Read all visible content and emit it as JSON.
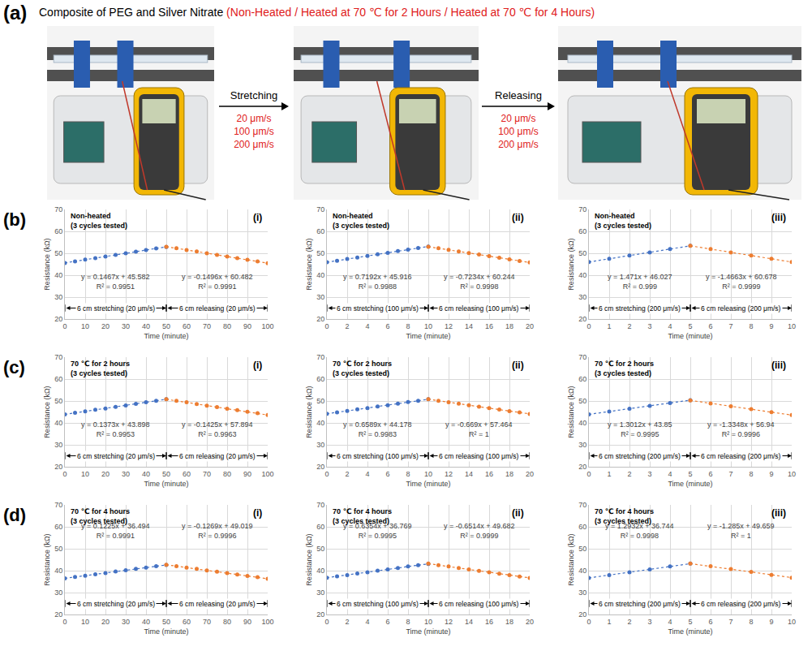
{
  "panel_a": {
    "label": "(a)",
    "title": "Composite of PEG and Silver Nitrate",
    "title_note": "(Non-Heated / Heated at 70 ℃ for 2 Hours / Heated at 70 ℃ for 4 Hours)",
    "steps": [
      {
        "text": "Stretching",
        "speeds": [
          "20 μm/s",
          "100 μm/s",
          "200 μm/s"
        ]
      },
      {
        "text": "Releasing",
        "speeds": [
          "20 μm/s",
          "100 μm/s",
          "200 μm/s"
        ]
      }
    ]
  },
  "chart_data": [
    {
      "type": "line",
      "row_label": "(b)",
      "title": "Non-heated",
      "subtitle": "(3 cycles tested)",
      "panel_label": "(i)",
      "x_label": "Time (minute)",
      "y_label": "Resistance (kΩ)",
      "xlim": [
        0,
        100
      ],
      "xticks": [
        0,
        10,
        20,
        30,
        40,
        50,
        60,
        70,
        80,
        90,
        100
      ],
      "ylim": [
        20,
        70
      ],
      "yticks": [
        20,
        30,
        40,
        50,
        60,
        70
      ],
      "grid": true,
      "series": [
        {
          "color": "#4472c4",
          "marker": "circle",
          "line_style": "dot",
          "x": [
            0,
            5,
            10,
            15,
            20,
            25,
            30,
            35,
            40,
            45,
            50
          ],
          "values": [
            45.6,
            46.3,
            47.1,
            47.8,
            48.5,
            49.3,
            50.0,
            50.7,
            51.5,
            52.2,
            52.9
          ],
          "fit": "y = 0.1467x + 45.582",
          "r2": "R² = 0.9951"
        },
        {
          "color": "#ed7d31",
          "marker": "circle",
          "line_style": "dot",
          "x": [
            50,
            55,
            60,
            65,
            70,
            75,
            80,
            85,
            90,
            95,
            100
          ],
          "values": [
            53.0,
            52.3,
            51.5,
            50.8,
            50.0,
            49.3,
            48.5,
            47.8,
            47.0,
            46.3,
            45.5
          ],
          "fit": "y = -0.1496x + 60.482",
          "r2": "R² = 0.9991"
        }
      ],
      "ranges": [
        {
          "text": "6 cm stretching (20 μm/s)",
          "from": 0,
          "to": 50,
          "y": 25
        },
        {
          "text": "6 cm releasing (20 μm/s)",
          "from": 50,
          "to": 100,
          "y": 25
        }
      ]
    },
    {
      "type": "line",
      "title": "Non-heated",
      "subtitle": "(3 cycles tested)",
      "panel_label": "(ii)",
      "x_label": "Time (minute)",
      "y_label": "Resistance (kΩ)",
      "xlim": [
        0,
        20
      ],
      "xticks": [
        0,
        2,
        4,
        6,
        8,
        10,
        12,
        14,
        16,
        18,
        20
      ],
      "ylim": [
        20,
        70
      ],
      "yticks": [
        20,
        30,
        40,
        50,
        60,
        70
      ],
      "grid": true,
      "series": [
        {
          "color": "#4472c4",
          "marker": "circle",
          "line_style": "dot",
          "x": [
            0,
            1,
            2,
            3,
            4,
            5,
            6,
            7,
            8,
            9,
            10
          ],
          "values": [
            45.9,
            46.6,
            47.4,
            48.1,
            48.8,
            49.5,
            50.2,
            51.0,
            51.7,
            52.4,
            53.1
          ],
          "fit": "y = 0.7192x + 45.916",
          "r2": "R² = 0.9988"
        },
        {
          "color": "#ed7d31",
          "marker": "circle",
          "line_style": "dot",
          "x": [
            10,
            11,
            12,
            13,
            14,
            15,
            16,
            17,
            18,
            19,
            20
          ],
          "values": [
            53.0,
            52.3,
            51.6,
            50.8,
            50.1,
            49.4,
            48.7,
            48.0,
            47.2,
            46.5,
            45.8
          ],
          "fit": "y = -0.7234x + 60.244",
          "r2": "R² = 0.9998"
        }
      ],
      "ranges": [
        {
          "text": "6 cm stretching (100 μm/s)",
          "from": 0,
          "to": 10,
          "y": 25
        },
        {
          "text": "6 cm releasing (100 μm/s)",
          "from": 10,
          "to": 20,
          "y": 25
        }
      ]
    },
    {
      "type": "line",
      "title": "Non-heated",
      "subtitle": "(3 cycles tested)",
      "panel_label": "(iii)",
      "x_label": "Time (minute)",
      "y_label": "Resistance (kΩ)",
      "xlim": [
        0,
        10
      ],
      "xticks": [
        0,
        1,
        2,
        3,
        4,
        5,
        6,
        7,
        8,
        9,
        10
      ],
      "ylim": [
        20,
        70
      ],
      "yticks": [
        20,
        30,
        40,
        50,
        60,
        70
      ],
      "grid": true,
      "series": [
        {
          "color": "#4472c4",
          "marker": "circle",
          "line_style": "dot",
          "x": [
            0,
            1,
            2,
            3,
            4,
            5
          ],
          "values": [
            46.0,
            47.5,
            49.0,
            50.4,
            51.9,
            53.4
          ],
          "fit": "y = 1.471x + 46.027",
          "r2": "R² = 0.999"
        },
        {
          "color": "#ed7d31",
          "marker": "circle",
          "line_style": "dot",
          "x": [
            5,
            6,
            7,
            8,
            9,
            10
          ],
          "values": [
            53.4,
            51.9,
            50.4,
            49.0,
            47.5,
            46.0
          ],
          "fit": "y = -1.4663x + 60.678",
          "r2": "R² = 0.9999"
        }
      ],
      "ranges": [
        {
          "text": "6 cm stretching (200 μm/s)",
          "from": 0,
          "to": 5,
          "y": 25
        },
        {
          "text": "6 cm releasing (200 μm/s)",
          "from": 5,
          "to": 10,
          "y": 25
        }
      ]
    },
    {
      "type": "line",
      "row_label": "(c)",
      "title": "70 ℃ for 2 hours",
      "subtitle": "(3 cycles tested)",
      "panel_label": "(i)",
      "x_label": "Time (minute)",
      "y_label": "Resistance (kΩ)",
      "xlim": [
        0,
        100
      ],
      "xticks": [
        0,
        10,
        20,
        30,
        40,
        50,
        60,
        70,
        80,
        90,
        100
      ],
      "ylim": [
        20,
        70
      ],
      "yticks": [
        20,
        30,
        40,
        50,
        60,
        70
      ],
      "grid": true,
      "series": [
        {
          "color": "#4472c4",
          "marker": "circle",
          "line_style": "dot",
          "x": [
            0,
            5,
            10,
            15,
            20,
            25,
            30,
            35,
            40,
            45,
            50
          ],
          "values": [
            43.9,
            44.6,
            45.3,
            46.0,
            46.6,
            47.3,
            48.0,
            48.7,
            49.4,
            50.1,
            50.8
          ],
          "fit": "y = 0.1373x + 43.898",
          "r2": "R² = 0.9953"
        },
        {
          "color": "#ed7d31",
          "marker": "circle",
          "line_style": "dot",
          "x": [
            50,
            55,
            60,
            65,
            70,
            75,
            80,
            85,
            90,
            95,
            100
          ],
          "values": [
            50.8,
            50.1,
            49.4,
            48.6,
            47.9,
            47.2,
            46.5,
            45.8,
            45.1,
            44.4,
            43.6
          ],
          "fit": "y = -0.1425x + 57.894",
          "r2": "R² = 0.9963"
        }
      ],
      "ranges": [
        {
          "text": "6 cm stretching (20 μm/s)",
          "from": 0,
          "to": 50,
          "y": 25
        },
        {
          "text": "6 cm releasing (20 μm/s)",
          "from": 50,
          "to": 100,
          "y": 25
        }
      ]
    },
    {
      "type": "line",
      "title": "70 ℃ for 2 hours",
      "subtitle": "(3 cycles tested)",
      "panel_label": "(ii)",
      "x_label": "Time (minute)",
      "y_label": "Resistance (kΩ)",
      "xlim": [
        0,
        20
      ],
      "xticks": [
        0,
        2,
        4,
        6,
        8,
        10,
        12,
        14,
        16,
        18,
        20
      ],
      "ylim": [
        20,
        70
      ],
      "yticks": [
        20,
        30,
        40,
        50,
        60,
        70
      ],
      "grid": true,
      "series": [
        {
          "color": "#4472c4",
          "marker": "circle",
          "line_style": "dot",
          "x": [
            0,
            1,
            2,
            3,
            4,
            5,
            6,
            7,
            8,
            9,
            10
          ],
          "values": [
            44.2,
            44.8,
            45.5,
            46.2,
            46.8,
            47.5,
            48.1,
            48.8,
            49.5,
            50.1,
            50.8
          ],
          "fit": "y = 0.6589x + 44.178",
          "r2": "R² = 0.9983"
        },
        {
          "color": "#ed7d31",
          "marker": "circle",
          "line_style": "dot",
          "x": [
            10,
            11,
            12,
            13,
            14,
            15,
            16,
            17,
            18,
            19,
            20
          ],
          "values": [
            50.8,
            50.1,
            49.4,
            48.8,
            48.1,
            47.4,
            46.8,
            46.1,
            45.4,
            44.8,
            44.1
          ],
          "fit": "y = -0.669x + 57.464",
          "r2": "R² = 1"
        }
      ],
      "ranges": [
        {
          "text": "6 cm stretching (100 μm/s)",
          "from": 0,
          "to": 10,
          "y": 25
        },
        {
          "text": "6 cm releasing (100 μm/s)",
          "from": 10,
          "to": 20,
          "y": 25
        }
      ]
    },
    {
      "type": "line",
      "title": "70 ℃ for 2 hours",
      "subtitle": "(3 cycles tested)",
      "panel_label": "(iii)",
      "x_label": "Time (minute)",
      "y_label": "Resistance (kΩ)",
      "xlim": [
        0,
        10
      ],
      "xticks": [
        0,
        1,
        2,
        3,
        4,
        5,
        6,
        7,
        8,
        9,
        10
      ],
      "ylim": [
        20,
        70
      ],
      "yticks": [
        20,
        30,
        40,
        50,
        60,
        70
      ],
      "grid": true,
      "series": [
        {
          "color": "#4472c4",
          "marker": "circle",
          "line_style": "dot",
          "x": [
            0,
            1,
            2,
            3,
            4,
            5
          ],
          "values": [
            43.9,
            45.2,
            46.5,
            47.8,
            49.1,
            50.4
          ],
          "fit": "y = 1.3012x + 43.85",
          "r2": "R² = 0.9995"
        },
        {
          "color": "#ed7d31",
          "marker": "circle",
          "line_style": "dot",
          "x": [
            5,
            6,
            7,
            8,
            9,
            10
          ],
          "values": [
            50.3,
            48.9,
            47.6,
            46.3,
            44.9,
            43.6
          ],
          "fit": "y = -1.3348x + 56.94",
          "r2": "R² = 0.9996"
        }
      ],
      "ranges": [
        {
          "text": "6 cm stretching (200 μm/s)",
          "from": 0,
          "to": 5,
          "y": 25
        },
        {
          "text": "6 cm releasing (200 μm/s)",
          "from": 5,
          "to": 10,
          "y": 25
        }
      ]
    },
    {
      "type": "line",
      "row_label": "(d)",
      "title": "70 ℃ for 4 hours",
      "subtitle": "(3 cycles tested)",
      "panel_label": "(i)",
      "x_label": "Time (minute)",
      "y_label": "Resistance (kΩ)",
      "xlim": [
        0,
        100
      ],
      "xticks": [
        0,
        10,
        20,
        30,
        40,
        50,
        60,
        70,
        80,
        90,
        100
      ],
      "ylim": [
        20,
        70
      ],
      "yticks": [
        20,
        30,
        40,
        50,
        60,
        70
      ],
      "grid": true,
      "series": [
        {
          "color": "#4472c4",
          "marker": "circle",
          "line_style": "dot",
          "x": [
            0,
            5,
            10,
            15,
            20,
            25,
            30,
            35,
            40,
            45,
            50
          ],
          "values": [
            36.5,
            37.1,
            37.7,
            38.3,
            38.9,
            39.6,
            40.2,
            40.8,
            41.4,
            42.0,
            42.6
          ],
          "fit": "y = 0.1225x + 36.494",
          "r2": "R² = 0.9991"
        },
        {
          "color": "#ed7d31",
          "marker": "circle",
          "line_style": "dot",
          "x": [
            50,
            55,
            60,
            65,
            70,
            75,
            80,
            85,
            90,
            95,
            100
          ],
          "values": [
            42.7,
            42.0,
            41.4,
            40.8,
            40.1,
            39.5,
            38.9,
            38.2,
            37.6,
            37.0,
            36.3
          ],
          "fit": "y = -0.1269x + 49.019",
          "r2": "R² = 0.9996"
        }
      ],
      "ranges": [
        {
          "text": "6 cm stretching (20 μm/s)",
          "from": 0,
          "to": 50,
          "y": 25
        },
        {
          "text": "6 cm releasing (20 μm/s)",
          "from": 50,
          "to": 100,
          "y": 25
        }
      ]
    },
    {
      "type": "line",
      "title": "70 ℃ for 4 hours",
      "subtitle": "(3 cycles tested)",
      "panel_label": "(ii)",
      "x_label": "Time (minute)",
      "y_label": "Resistance (kΩ)",
      "xlim": [
        0,
        20
      ],
      "xticks": [
        0,
        2,
        4,
        6,
        8,
        10,
        12,
        14,
        16,
        18,
        20
      ],
      "ylim": [
        20,
        70
      ],
      "yticks": [
        20,
        30,
        40,
        50,
        60,
        70
      ],
      "grid": true,
      "series": [
        {
          "color": "#4472c4",
          "marker": "circle",
          "line_style": "dot",
          "x": [
            0,
            1,
            2,
            3,
            4,
            5,
            6,
            7,
            8,
            9,
            10
          ],
          "values": [
            36.8,
            37.4,
            38.0,
            38.7,
            39.3,
            40.0,
            40.6,
            41.2,
            41.9,
            42.5,
            43.1
          ],
          "fit": "y = 0.6354x + 36.769",
          "r2": "R² = 0.9995"
        },
        {
          "color": "#ed7d31",
          "marker": "circle",
          "line_style": "dot",
          "x": [
            10,
            11,
            12,
            13,
            14,
            15,
            16,
            17,
            18,
            19,
            20
          ],
          "values": [
            43.2,
            42.5,
            41.9,
            41.2,
            40.6,
            39.9,
            39.3,
            38.6,
            38.0,
            37.3,
            36.7
          ],
          "fit": "y = -0.6514x + 49.682",
          "r2": "R² = 0.9999"
        }
      ],
      "ranges": [
        {
          "text": "6 cm stretching (100 μm/s)",
          "from": 0,
          "to": 10,
          "y": 25
        },
        {
          "text": "6 cm releasing (100 μm/s)",
          "from": 10,
          "to": 20,
          "y": 25
        }
      ]
    },
    {
      "type": "line",
      "title": "70 ℃ for 4 hours",
      "subtitle": "(3 cycles tested)",
      "panel_label": "(iii)",
      "x_label": "Time (minute)",
      "y_label": "Resistance (kΩ)",
      "xlim": [
        0,
        10
      ],
      "xticks": [
        0,
        1,
        2,
        3,
        4,
        5,
        6,
        7,
        8,
        9,
        10
      ],
      "ylim": [
        20,
        70
      ],
      "yticks": [
        20,
        30,
        40,
        50,
        60,
        70
      ],
      "grid": true,
      "series": [
        {
          "color": "#4472c4",
          "marker": "circle",
          "line_style": "dot",
          "x": [
            0,
            1,
            2,
            3,
            4,
            5
          ],
          "values": [
            36.7,
            38.0,
            39.3,
            40.6,
            41.9,
            43.2
          ],
          "fit": "y = 1.2932x + 36.744",
          "r2": "R² = 0.9998"
        },
        {
          "color": "#ed7d31",
          "marker": "circle",
          "line_style": "dot",
          "x": [
            5,
            6,
            7,
            8,
            9,
            10
          ],
          "values": [
            43.2,
            42.0,
            40.7,
            39.4,
            38.1,
            36.8
          ],
          "fit": "y = -1.285x + 49.659",
          "r2": "R² = 1"
        }
      ],
      "ranges": [
        {
          "text": "6 cm stretching (200 μm/s)",
          "from": 0,
          "to": 5,
          "y": 25
        },
        {
          "text": "6 cm releasing (200 μm/s)",
          "from": 5,
          "to": 10,
          "y": 25
        }
      ]
    }
  ]
}
